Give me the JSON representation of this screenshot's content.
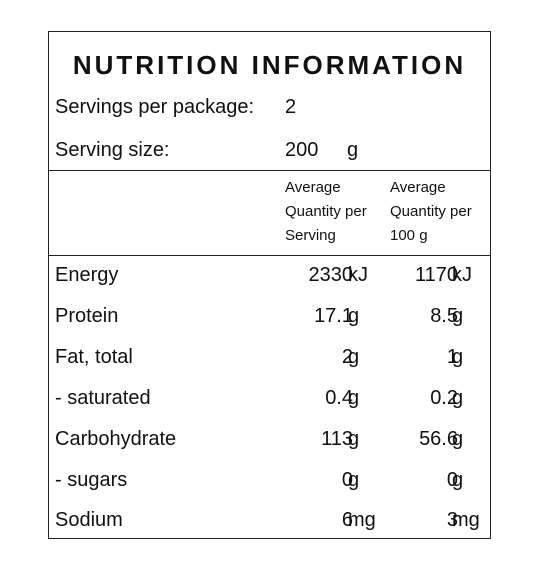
{
  "panel": {
    "title": "NUTRITION INFORMATION",
    "servings": {
      "label": "Servings per package:",
      "value": "2"
    },
    "serving_size": {
      "label": "Serving size:",
      "value": "200",
      "unit": "g"
    },
    "columns": {
      "per_serving": "Average\nQuantity per\nServing",
      "per_100g": "Average\nQuantity per\n100 g"
    },
    "rows": [
      {
        "name": "Energy",
        "serving": "2330",
        "serving_unit": "kJ",
        "per100": "1170",
        "per100_unit": "kJ"
      },
      {
        "name": "Protein",
        "serving": "17.1",
        "serving_unit": "g",
        "per100": "8.5",
        "per100_unit": "g"
      },
      {
        "name": "Fat, total",
        "serving": "2",
        "serving_unit": "g",
        "per100": "1",
        "per100_unit": "g"
      },
      {
        "name": "- saturated",
        "serving": "0.4",
        "serving_unit": "g",
        "per100": "0.2",
        "per100_unit": "g"
      },
      {
        "name": "Carbohydrate",
        "serving": "113",
        "serving_unit": "g",
        "per100": "56.6",
        "per100_unit": "g"
      },
      {
        "name": "- sugars",
        "serving": "0",
        "serving_unit": "g",
        "per100": "0",
        "per100_unit": "g"
      },
      {
        "name": "Sodium",
        "serving": "6",
        "serving_unit": "mg",
        "per100": "3",
        "per100_unit": "mg"
      }
    ]
  }
}
